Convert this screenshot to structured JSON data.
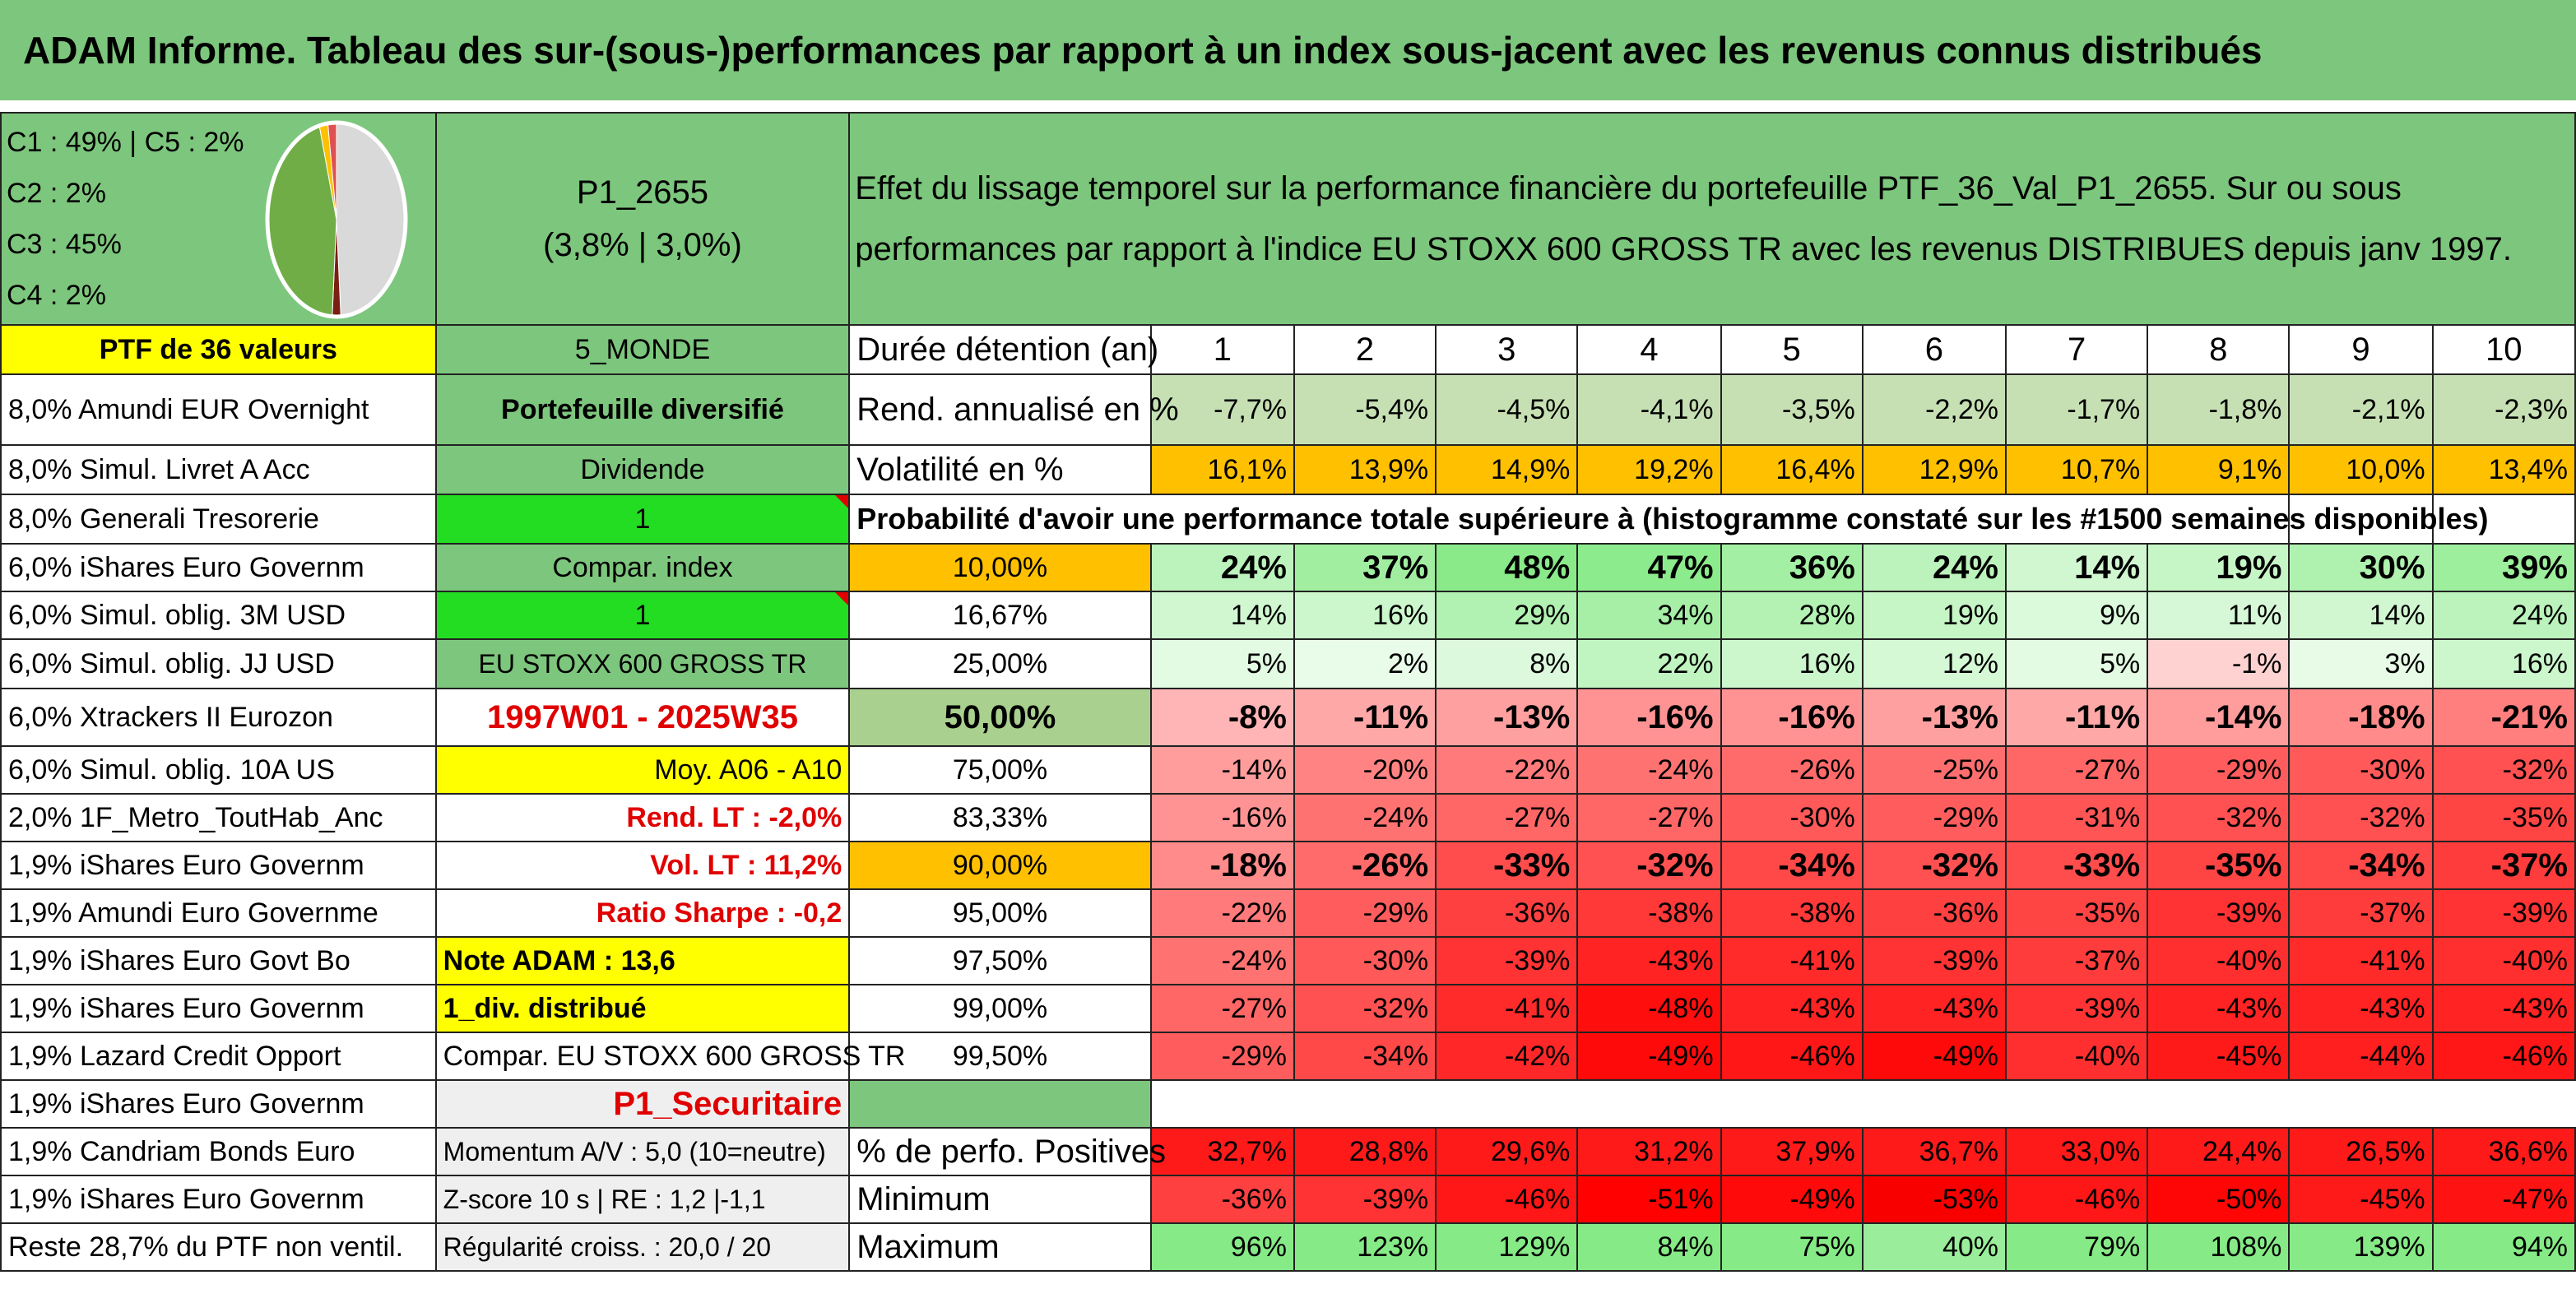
{
  "title": "ADAM Informe. Tableau des sur-(sous-)performances par rapport à un index sous-jacent avec les revenus connus distribués",
  "composition": {
    "lines": [
      "C1 : 49% | C5 : 2%",
      "C2 : 2%",
      "C3 : 45%",
      "C4 : 2%"
    ],
    "pie_slices": [
      {
        "label": "C1",
        "value": 49,
        "color": "#d9d9d9"
      },
      {
        "label": "C2",
        "value": 2,
        "color": "#7b1f12"
      },
      {
        "label": "C3",
        "value": 45,
        "color": "#70ad47"
      },
      {
        "label": "C4",
        "value": 2,
        "color": "#ffc000"
      },
      {
        "label": "C5",
        "value": 2,
        "color": "#e05050"
      }
    ]
  },
  "portfolio": {
    "name": "P1_2655",
    "perf": "(3,8% | 3,0%)",
    "count_label": "PTF de 36 valeurs"
  },
  "description": "Effet du lissage temporel sur la performance financière du portefeuille PTF_36_Val_P1_2655. Sur ou sous performances par rapport à l'indice EU STOXX 600 GROSS TR avec les revenus DISTRIBUES depuis janv 1997.",
  "holdings": [
    "8,0% Amundi EUR Overnight",
    "8,0% Simul. Livret A Acc",
    "8,0% Generali Tresorerie",
    "6,0% iShares Euro Governm",
    "6,0% Simul. oblig. 3M USD",
    "6,0% Simul. oblig. JJ USD",
    "6,0% Xtrackers II Eurozon",
    "6,0% Simul. oblig. 10A US",
    "2,0% 1F_Metro_ToutHab_Anc",
    "1,9% iShares Euro Governm",
    "1,9% Amundi Euro Governme",
    "1,9% iShares Euro Govt Bo",
    "1,9% iShares Euro Governm",
    "1,9% Lazard Credit Opport",
    "1,9% iShares Euro Governm",
    "1,9% Candriam Bonds Euro",
    "1,9% iShares Euro Governm",
    "Reste 28,7% du PTF non ventil."
  ],
  "info_col": [
    "5_MONDE",
    "Portefeuille diversifié",
    "Dividende",
    "1",
    "Compar. index",
    "1",
    "EU STOXX 600 GROSS TR",
    "1997W01 - 2025W35",
    "Moy. A06 - A10",
    "Rend. LT : -2,0%",
    "Vol. LT : 11,2%",
    "Ratio Sharpe : -0,2",
    "Note ADAM : 13,6",
    "1_div. distribué",
    "Compar. EU STOXX 600 GROSS TR",
    "P1_Securitaire",
    "Momentum A/V : 5,0 (10=neutre)",
    "Z-score 10 s | RE : 1,2 |-1,1",
    "Régularité croiss. : 20,0 / 20"
  ],
  "table": {
    "header_label": "Durée détention (an)",
    "years": [
      "1",
      "2",
      "3",
      "4",
      "5",
      "6",
      "7",
      "8",
      "9",
      "10"
    ],
    "rend_label": "Rend. annualisé en %",
    "rend": [
      "-7,7%",
      "-5,4%",
      "-4,5%",
      "-4,1%",
      "-3,5%",
      "-2,2%",
      "-1,7%",
      "-1,8%",
      "-2,1%",
      "-2,3%"
    ],
    "vol_label": "Volatilité en %",
    "vol": [
      "16,1%",
      "13,9%",
      "14,9%",
      "19,2%",
      "16,4%",
      "12,9%",
      "10,7%",
      "9,1%",
      "10,0%",
      "13,4%"
    ],
    "prob_title": "Probabilité d'avoir une performance totale supérieure à (histogramme constaté sur les #1500 semaines disponibles)",
    "quantiles": [
      {
        "q": "10,00%",
        "v": [
          "24%",
          "37%",
          "48%",
          "47%",
          "36%",
          "24%",
          "14%",
          "19%",
          "30%",
          "39%"
        ]
      },
      {
        "q": "16,67%",
        "v": [
          "14%",
          "16%",
          "29%",
          "34%",
          "28%",
          "19%",
          "9%",
          "11%",
          "14%",
          "24%"
        ]
      },
      {
        "q": "25,00%",
        "v": [
          "5%",
          "2%",
          "8%",
          "22%",
          "16%",
          "12%",
          "5%",
          "-1%",
          "3%",
          "16%"
        ]
      },
      {
        "q": "50,00%",
        "v": [
          "-8%",
          "-11%",
          "-13%",
          "-16%",
          "-16%",
          "-13%",
          "-11%",
          "-14%",
          "-18%",
          "-21%"
        ]
      },
      {
        "q": "75,00%",
        "v": [
          "-14%",
          "-20%",
          "-22%",
          "-24%",
          "-26%",
          "-25%",
          "-27%",
          "-29%",
          "-30%",
          "-32%"
        ]
      },
      {
        "q": "83,33%",
        "v": [
          "-16%",
          "-24%",
          "-27%",
          "-27%",
          "-30%",
          "-29%",
          "-31%",
          "-32%",
          "-32%",
          "-35%"
        ]
      },
      {
        "q": "90,00%",
        "v": [
          "-18%",
          "-26%",
          "-33%",
          "-32%",
          "-34%",
          "-32%",
          "-33%",
          "-35%",
          "-34%",
          "-37%"
        ]
      },
      {
        "q": "95,00%",
        "v": [
          "-22%",
          "-29%",
          "-36%",
          "-38%",
          "-38%",
          "-36%",
          "-35%",
          "-39%",
          "-37%",
          "-39%"
        ]
      },
      {
        "q": "97,50%",
        "v": [
          "-24%",
          "-30%",
          "-39%",
          "-43%",
          "-41%",
          "-39%",
          "-37%",
          "-40%",
          "-41%",
          "-40%"
        ]
      },
      {
        "q": "99,00%",
        "v": [
          "-27%",
          "-32%",
          "-41%",
          "-48%",
          "-43%",
          "-43%",
          "-39%",
          "-43%",
          "-43%",
          "-43%"
        ]
      },
      {
        "q": "99,50%",
        "v": [
          "-29%",
          "-34%",
          "-42%",
          "-49%",
          "-46%",
          "-49%",
          "-40%",
          "-45%",
          "-44%",
          "-46%"
        ]
      }
    ],
    "pos_label": "% de perfo. Positives",
    "pos": [
      "32,7%",
      "28,8%",
      "29,6%",
      "31,2%",
      "37,9%",
      "36,7%",
      "33,0%",
      "24,4%",
      "26,5%",
      "36,6%"
    ],
    "min_label": "Minimum",
    "min": [
      "-36%",
      "-39%",
      "-46%",
      "-51%",
      "-49%",
      "-53%",
      "-46%",
      "-50%",
      "-45%",
      "-47%"
    ],
    "max_label": "Maximum",
    "max": [
      "96%",
      "123%",
      "129%",
      "84%",
      "75%",
      "40%",
      "79%",
      "108%",
      "139%",
      "94%"
    ]
  }
}
